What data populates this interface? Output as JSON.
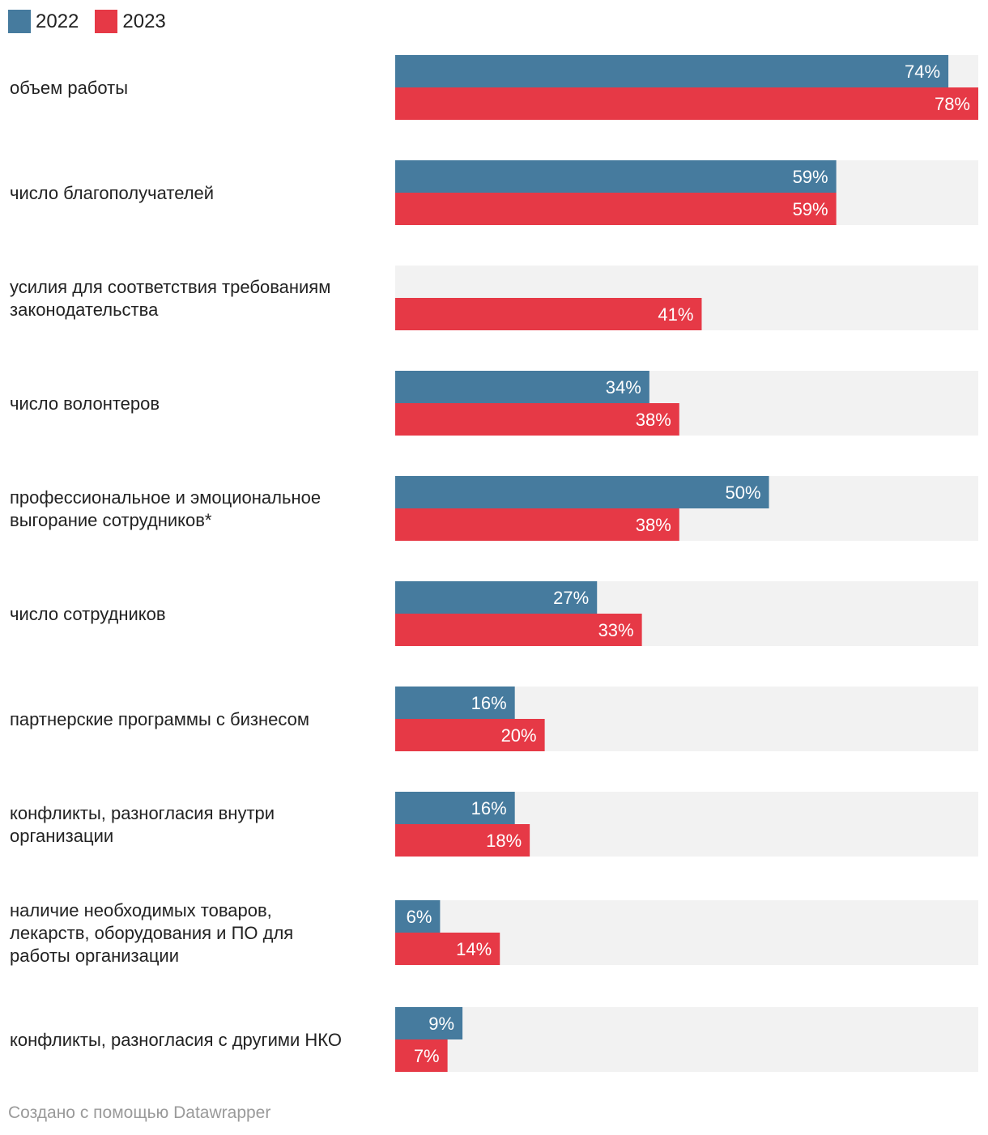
{
  "chart_data": {
    "type": "bar",
    "orientation": "horizontal",
    "legend_position": "top-left",
    "xlim": [
      0,
      78
    ],
    "categories": [
      "объем работы",
      "число благополучателей",
      "усилия для соответствия требованиям законодательства",
      "число волонтеров",
      "профессиональное и эмоциональное выгорание сотрудников*",
      "число сотрудников",
      "партнерские программы с бизнесом",
      "конфликты, разногласия внутри организации",
      "наличие необходимых товаров, лекарств, оборудования и ПО для работы организации",
      "конфликты, разногласия с другими НКО"
    ],
    "category_lines": [
      [
        "объем работы"
      ],
      [
        "число благополучателей"
      ],
      [
        "усилия для соответствия требованиям",
        "законодательства"
      ],
      [
        "число волонтеров"
      ],
      [
        "профессиональное и эмоциональное",
        "выгорание сотрудников*"
      ],
      [
        "число сотрудников"
      ],
      [
        "партнерские программы с бизнесом"
      ],
      [
        "конфликты, разногласия внутри",
        "организации"
      ],
      [
        "наличие необходимых товаров,",
        "лекарств, оборудования и ПО для",
        "работы организации"
      ],
      [
        "конфликты, разногласия с другими НКО"
      ]
    ],
    "series": [
      {
        "name": "2022",
        "color": "#467b9e",
        "values": [
          74,
          59,
          null,
          34,
          50,
          27,
          16,
          16,
          6,
          9
        ]
      },
      {
        "name": "2023",
        "color": "#e63946",
        "values": [
          78,
          59,
          41,
          38,
          38,
          33,
          20,
          18,
          14,
          7
        ]
      }
    ],
    "value_suffix": "%",
    "track_color": "#f2f2f2"
  },
  "legend": {
    "items": [
      {
        "label": "2022",
        "color": "#467b9e"
      },
      {
        "label": "2023",
        "color": "#e63946"
      }
    ]
  },
  "footer": {
    "credit": "Создано с помощью Datawrapper"
  }
}
